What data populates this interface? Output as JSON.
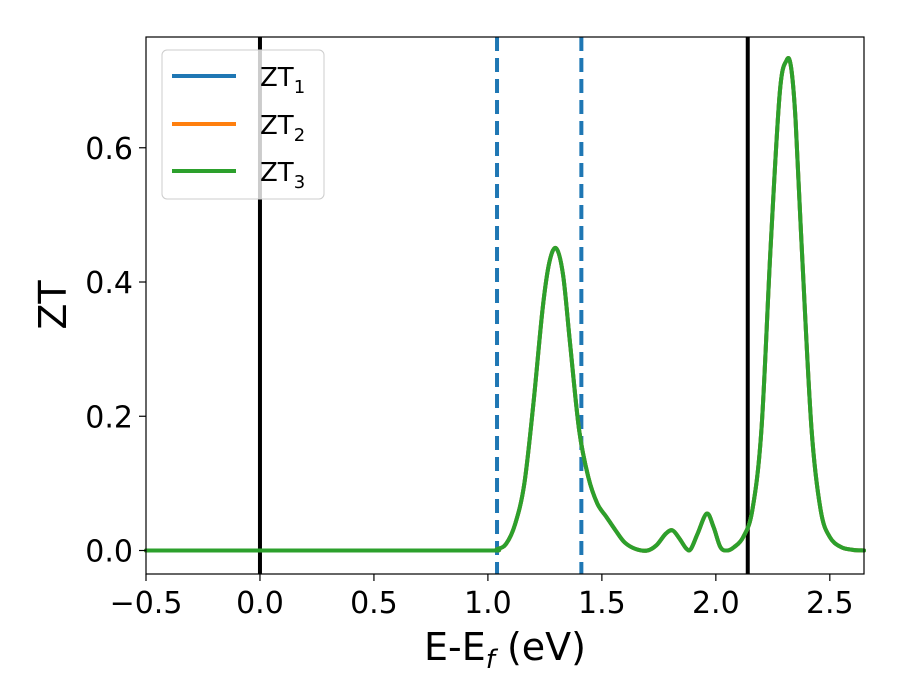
{
  "chart_data": {
    "type": "line",
    "title": "",
    "xlabel": "E-E",
    "xlabel_sub": "f",
    "xlabel_unit": " (eV)",
    "ylabel": "ZT",
    "xlim": [
      -0.5,
      2.65
    ],
    "ylim": [
      -0.035,
      0.765
    ],
    "xticks": [
      -0.5,
      0.0,
      0.5,
      1.0,
      1.5,
      2.0,
      2.5
    ],
    "xtick_labels": [
      "−0.5",
      "0.0",
      "0.5",
      "1.0",
      "1.5",
      "2.0",
      "2.5"
    ],
    "yticks": [
      0.0,
      0.2,
      0.4,
      0.6
    ],
    "ytick_labels": [
      "0.0",
      "0.2",
      "0.4",
      "0.6"
    ],
    "grid": false,
    "legend_position": "top-left",
    "series": [
      {
        "name": "ZT",
        "sub": "1",
        "color": "#1f77b4"
      },
      {
        "name": "ZT",
        "sub": "2",
        "color": "#ff7f0e"
      },
      {
        "name": "ZT",
        "sub": "3",
        "color": "#2ca02c"
      }
    ],
    "x": [
      -0.5,
      0.0,
      0.5,
      1.0,
      1.04,
      1.08,
      1.12,
      1.16,
      1.2,
      1.24,
      1.27,
      1.3,
      1.33,
      1.36,
      1.4,
      1.44,
      1.48,
      1.52,
      1.56,
      1.6,
      1.65,
      1.7,
      1.74,
      1.78,
      1.81,
      1.84,
      1.87,
      1.89,
      1.92,
      1.96,
      1.99,
      2.02,
      2.05,
      2.08,
      2.12,
      2.16,
      2.2,
      2.24,
      2.28,
      2.31,
      2.33,
      2.35,
      2.38,
      2.42,
      2.46,
      2.5,
      2.55,
      2.6,
      2.65
    ],
    "y": [
      0.0,
      0.0,
      0.0,
      0.0,
      0.002,
      0.01,
      0.04,
      0.1,
      0.22,
      0.36,
      0.43,
      0.45,
      0.41,
      0.31,
      0.18,
      0.11,
      0.07,
      0.05,
      0.03,
      0.012,
      0.002,
      0.0,
      0.008,
      0.025,
      0.03,
      0.018,
      0.003,
      0.002,
      0.025,
      0.055,
      0.035,
      0.005,
      0.0,
      0.005,
      0.02,
      0.06,
      0.18,
      0.45,
      0.68,
      0.73,
      0.72,
      0.64,
      0.43,
      0.18,
      0.06,
      0.02,
      0.005,
      0.001,
      0.0
    ],
    "vlines": [
      {
        "x": 0.0,
        "color": "#000000",
        "style": "solid"
      },
      {
        "x": 1.04,
        "color": "#1f77b4",
        "style": "dashed"
      },
      {
        "x": 1.41,
        "color": "#1f77b4",
        "style": "dashed"
      },
      {
        "x": 2.14,
        "color": "#000000",
        "style": "solid"
      }
    ]
  }
}
